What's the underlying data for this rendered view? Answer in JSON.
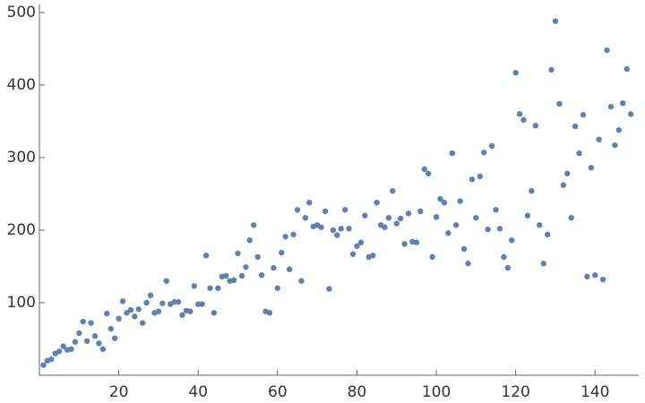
{
  "chart_data": {
    "type": "scatter",
    "color": "#5e81b5",
    "x": [
      1,
      2,
      3,
      4,
      5,
      6,
      7,
      8,
      9,
      10,
      11,
      12,
      13,
      14,
      15,
      16,
      17,
      18,
      19,
      20,
      21,
      22,
      23,
      24,
      25,
      26,
      27,
      28,
      29,
      30,
      31,
      32,
      33,
      34,
      35,
      36,
      37,
      38,
      39,
      40,
      41,
      42,
      43,
      44,
      45,
      46,
      47,
      48,
      49,
      50,
      51,
      52,
      53,
      54,
      55,
      56,
      57,
      58,
      59,
      60,
      61,
      62,
      63,
      64,
      65,
      66,
      67,
      68,
      69,
      70,
      71,
      72,
      73,
      74,
      75,
      76,
      77,
      78,
      79,
      80,
      81,
      82,
      83,
      84,
      85,
      86,
      87,
      88,
      89,
      90,
      91,
      92,
      93,
      94,
      95,
      96,
      97,
      98,
      99,
      100,
      101,
      102,
      103,
      104,
      105,
      106,
      107,
      108,
      109,
      110,
      111,
      112,
      113,
      114,
      115,
      116,
      117,
      118,
      119,
      120,
      121,
      122,
      123,
      124,
      125,
      126,
      127,
      128,
      129,
      130,
      131,
      132,
      133,
      134,
      135,
      136,
      137,
      138,
      139,
      140,
      141,
      142,
      143,
      144,
      145,
      146,
      147,
      148,
      149
    ],
    "values": [
      14,
      20,
      22,
      30,
      33,
      40,
      35,
      36,
      46,
      58,
      74,
      47,
      72,
      54,
      44,
      36,
      85,
      64,
      51,
      78,
      102,
      86,
      90,
      81,
      91,
      72,
      100,
      110,
      86,
      88,
      99,
      130,
      98,
      101,
      101,
      83,
      89,
      88,
      123,
      98,
      98,
      165,
      120,
      86,
      120,
      136,
      137,
      130,
      131,
      168,
      137,
      149,
      186,
      207,
      163,
      138,
      88,
      86,
      148,
      120,
      169,
      191,
      146,
      194,
      228,
      130,
      217,
      238,
      205,
      207,
      204,
      226,
      119,
      200,
      193,
      202,
      228,
      202,
      167,
      178,
      183,
      220,
      163,
      165,
      238,
      207,
      204,
      217,
      254,
      209,
      216,
      181,
      223,
      184,
      183,
      226,
      284,
      278,
      163,
      218,
      243,
      238,
      196,
      306,
      207,
      240,
      174,
      154,
      270,
      217,
      274,
      307,
      201,
      316,
      228,
      202,
      163,
      148,
      186,
      417,
      360,
      352,
      220,
      254,
      344,
      207,
      154,
      194,
      421,
      488,
      374,
      262,
      278,
      217,
      343,
      306,
      359,
      136,
      286,
      138,
      325,
      132,
      448,
      370,
      317,
      338,
      375,
      422,
      360
    ],
    "xlim": [
      0,
      151
    ],
    "ylim": [
      0,
      511
    ],
    "xticks": [
      20,
      40,
      60,
      80,
      100,
      120,
      140
    ],
    "yticks": [
      100,
      200,
      300,
      400,
      500
    ]
  }
}
